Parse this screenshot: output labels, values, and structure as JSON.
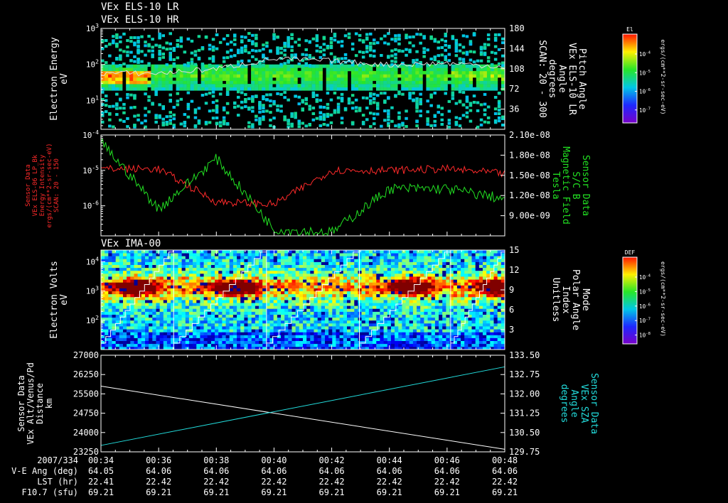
{
  "titles": [
    "VEx ELS-10 LR",
    "VEx ELS-10 HR"
  ],
  "panels": [
    {
      "left_label": [
        "Electron Energy",
        "eV"
      ],
      "left_ticks": [
        {
          "t": "10^3",
          "v": 3
        },
        {
          "t": "10^2",
          "v": 2
        },
        {
          "t": "10^1",
          "v": 1
        }
      ],
      "ylim": [
        0.2,
        3
      ],
      "right_label": [
        "Pitch Angle",
        "VEx ELS-10 LR",
        "Angle",
        "degrees",
        "SCAN: 20 - 300"
      ],
      "right_ticks": [
        "180",
        "144",
        "108",
        "72",
        "36"
      ],
      "right_ylim": [
        0,
        180
      ],
      "colorbar": {
        "title": "El",
        "label": "ergs/(cm**2-sr-sec-eV)",
        "ticks": [
          "10^-4",
          "10^-5",
          "10^-6",
          "10^-7"
        ]
      }
    },
    {
      "left_label": [
        "Sensor Data",
        "VEx ELS-06 LP_Bk",
        "Energy Intensity",
        "ergs/(cm**2-sr-sec-eV)",
        "SCAN: 20 - 150"
      ],
      "left_ticks": [
        {
          "t": "10^-4",
          "v": -4
        },
        {
          "t": "10^-5",
          "v": -5
        },
        {
          "t": "10^-6",
          "v": -6
        }
      ],
      "ylim": [
        -6.85,
        -4
      ],
      "right_label": [
        "Sensor Data",
        "S/C B",
        "Magnetic Field",
        "Tesla"
      ],
      "right_ticks": [
        "2.10e-08",
        "1.80e-08",
        "1.50e-08",
        "1.20e-08",
        "9.00e-09"
      ],
      "right_ylim": [
        6e-09,
        2.1e-08
      ]
    },
    {
      "title": "VEx IMA-00",
      "left_label": [
        "Electron Volts",
        "eV"
      ],
      "left_ticks": [
        {
          "t": "10^4",
          "v": 4
        },
        {
          "t": "10^3",
          "v": 3
        },
        {
          "t": "10^2",
          "v": 2
        }
      ],
      "ylim": [
        1.0,
        4.4
      ],
      "right_label": [
        "Mode",
        "Polar Angle",
        "Index",
        "Unitless"
      ],
      "right_ticks": [
        "15",
        "12",
        "9",
        "6",
        "3"
      ],
      "right_ylim": [
        0,
        15
      ],
      "colorbar": {
        "title": "DEF",
        "label": "ergs/(cm**2-sr-sec-eV)",
        "ticks": [
          "10^-4",
          "10^-5",
          "10^-6",
          "10^-7",
          "10^-8"
        ]
      }
    },
    {
      "left_label": [
        "Sensor Data",
        "VEx Alt/Venus/Pd",
        "Distance",
        "km"
      ],
      "left_ticks": [
        "27000",
        "26250",
        "25500",
        "24750",
        "24000",
        "23250"
      ],
      "ylim": [
        23250,
        27000
      ],
      "right_label": [
        "Sensor Data",
        "VEx SZA",
        "Angle",
        "degrees"
      ],
      "right_ticks": [
        "133.50",
        "132.75",
        "132.00",
        "131.25",
        "130.50",
        "129.75"
      ],
      "right_ylim": [
        129.75,
        133.5
      ]
    }
  ],
  "footer": {
    "rows": [
      {
        "label": "2007/334",
        "values": [
          "00:34",
          "00:36",
          "00:38",
          "00:40",
          "00:42",
          "00:44",
          "00:46",
          "00:48"
        ]
      },
      {
        "label": "V-E Ang (deg)",
        "values": [
          "64.05",
          "64.06",
          "64.06",
          "64.06",
          "64.06",
          "64.06",
          "64.06",
          "64.06"
        ]
      },
      {
        "label": "LST (hr)",
        "values": [
          "22.41",
          "22.42",
          "22.42",
          "22.42",
          "22.42",
          "22.42",
          "22.42",
          "22.42"
        ]
      },
      {
        "label": "F10.7 (sfu)",
        "values": [
          "69.21",
          "69.21",
          "69.21",
          "69.21",
          "69.21",
          "69.21",
          "69.21",
          "69.21"
        ]
      }
    ]
  },
  "colors": {
    "bg": "#000000",
    "axis": "#ffffff",
    "red": "#ff2a2a",
    "green": "#22e022",
    "cyan": "#22dddd"
  },
  "chart_data": [
    {
      "type": "heatmap",
      "xlabel": "",
      "x_range": [
        "00:34",
        "00:48"
      ],
      "ylabel": "Electron Energy eV",
      "log_y": true,
      "ylim": [
        1.6,
        1000
      ],
      "right_axis": {
        "label": "Pitch Angle (degrees)",
        "range": [
          0,
          180
        ]
      },
      "white_line": {
        "name": "Pitch Angle",
        "x": [
          "00:34",
          "00:36",
          "00:38",
          "00:40",
          "00:42",
          "00:44",
          "00:46",
          "00:48"
        ],
        "values": [
          100,
          100,
          108,
          126,
          122,
          115,
          118,
          112
        ]
      }
    },
    {
      "type": "line",
      "x": [
        "00:34",
        "00:36",
        "00:38",
        "00:40",
        "00:42",
        "00:44",
        "00:46",
        "00:48"
      ],
      "series": [
        {
          "name": "VEx ELS-06 LP_Bk Energy Intensity",
          "axis": "left",
          "log_y": true,
          "values": [
            1.1e-05,
            1.1e-05,
            1.3e-06,
            1.1e-06,
            1e-05,
            1e-05,
            1.1e-05,
            8e-06
          ]
        },
        {
          "name": "S/C B Magnetic Field",
          "axis": "right",
          "values": [
            2e-08,
            1e-08,
            1.75e-08,
            7e-09,
            6.5e-09,
            1.3e-08,
            1.3e-08,
            1.15e-08
          ]
        }
      ],
      "ylim": [
        1.4e-07,
        0.0001
      ],
      "right_ylim": [
        6e-09,
        2.1e-08
      ]
    },
    {
      "type": "heatmap",
      "x_range": [
        "00:34",
        "00:48"
      ],
      "ylabel": "Electron Volts eV",
      "log_y": true,
      "ylim": [
        10,
        25000
      ],
      "right_axis": {
        "label": "Polar Angle Index",
        "range": [
          0,
          15
        ]
      },
      "white_line": {
        "name": "Polar Angle Index",
        "sweep_starts": [
          "00:34",
          "00:37",
          "00:40",
          "00:43",
          "00:46"
        ],
        "range": [
          0,
          15
        ]
      }
    },
    {
      "type": "line",
      "x": [
        "00:34",
        "00:48"
      ],
      "series": [
        {
          "name": "VEx Alt/Venus/Pd Distance km",
          "axis": "left",
          "values": [
            25800,
            23350
          ]
        },
        {
          "name": "VEx SZA Angle degrees",
          "axis": "right",
          "values": [
            130.0,
            133.05
          ]
        }
      ],
      "ylim": [
        23250,
        27000
      ],
      "right_ylim": [
        129.75,
        133.5
      ]
    }
  ]
}
